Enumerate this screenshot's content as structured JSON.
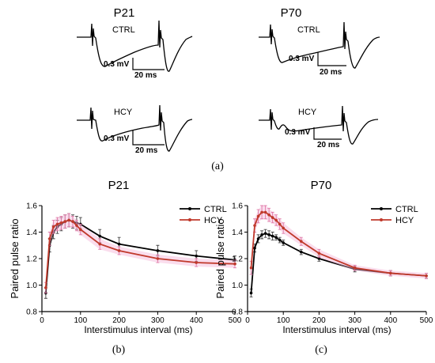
{
  "panel_labels": {
    "a": "(a)",
    "b": "(b)",
    "c": "(c)"
  },
  "traces": [
    {
      "group": "P21",
      "condition": "CTRL",
      "scale_mv": "0.3 mV",
      "scale_ms": "20 ms"
    },
    {
      "group": "P21",
      "condition": "HCY",
      "scale_mv": "0.3 mV",
      "scale_ms": "20 ms"
    },
    {
      "group": "P70",
      "condition": "CTRL",
      "scale_mv": "0.3 mV",
      "scale_ms": "20 ms"
    },
    {
      "group": "P70",
      "condition": "HCY",
      "scale_mv": "0.3 mV",
      "scale_ms": "20 ms"
    }
  ],
  "trace_headers": {
    "left": "P21",
    "right": "P70"
  },
  "colors": {
    "CTRL": "#000000",
    "HCY": "#c0392b",
    "HCY_band": "#f3b3d6"
  },
  "chart_data": [
    {
      "type": "line",
      "title": "P21",
      "xlabel": "Interstimulus interval (ms)",
      "ylabel": "Paired pulse ratio",
      "xlim": [
        0,
        500
      ],
      "ylim": [
        0.8,
        1.6
      ],
      "xticks": [
        0,
        100,
        200,
        300,
        400,
        500
      ],
      "yticks": [
        0.8,
        1.0,
        1.2,
        1.4,
        1.6
      ],
      "grid": false,
      "legend": "top-right",
      "x": [
        10,
        20,
        30,
        40,
        50,
        60,
        70,
        80,
        90,
        100,
        150,
        200,
        300,
        400,
        500
      ],
      "series": [
        {
          "name": "CTRL",
          "values": [
            0.94,
            1.3,
            1.4,
            1.44,
            1.46,
            1.48,
            1.49,
            1.48,
            1.47,
            1.46,
            1.37,
            1.31,
            1.26,
            1.22,
            1.19
          ],
          "errors": [
            0.04,
            0.05,
            0.05,
            0.05,
            0.05,
            0.05,
            0.05,
            0.05,
            0.05,
            0.05,
            0.05,
            0.05,
            0.04,
            0.04,
            0.03
          ]
        },
        {
          "name": "HCY",
          "values": [
            0.98,
            1.35,
            1.44,
            1.46,
            1.47,
            1.48,
            1.49,
            1.48,
            1.45,
            1.42,
            1.31,
            1.26,
            1.2,
            1.17,
            1.16
          ],
          "errors": [
            0.04,
            0.05,
            0.05,
            0.05,
            0.05,
            0.05,
            0.05,
            0.04,
            0.04,
            0.04,
            0.04,
            0.03,
            0.03,
            0.03,
            0.03
          ]
        }
      ]
    },
    {
      "type": "line",
      "title": "P70",
      "xlabel": "Interstimulus interval (ms)",
      "ylabel": "Paired pulse ratio",
      "xlim": [
        0,
        500
      ],
      "ylim": [
        0.8,
        1.6
      ],
      "xticks": [
        0,
        100,
        200,
        300,
        400,
        500
      ],
      "yticks": [
        0.8,
        1.0,
        1.2,
        1.4,
        1.6
      ],
      "grid": false,
      "legend": "top-right",
      "x": [
        10,
        20,
        30,
        40,
        50,
        60,
        70,
        80,
        90,
        100,
        150,
        200,
        300,
        400,
        500
      ],
      "series": [
        {
          "name": "CTRL",
          "values": [
            0.94,
            1.28,
            1.35,
            1.38,
            1.39,
            1.38,
            1.37,
            1.36,
            1.34,
            1.32,
            1.25,
            1.2,
            1.12,
            1.09,
            1.07
          ],
          "errors": [
            0.03,
            0.03,
            0.03,
            0.03,
            0.03,
            0.03,
            0.03,
            0.02,
            0.02,
            0.02,
            0.02,
            0.02,
            0.02,
            0.02,
            0.02
          ]
        },
        {
          "name": "HCY",
          "values": [
            1.13,
            1.45,
            1.52,
            1.55,
            1.55,
            1.53,
            1.51,
            1.49,
            1.46,
            1.43,
            1.33,
            1.24,
            1.13,
            1.09,
            1.07
          ],
          "errors": [
            0.05,
            0.05,
            0.05,
            0.05,
            0.05,
            0.05,
            0.04,
            0.04,
            0.04,
            0.04,
            0.03,
            0.03,
            0.02,
            0.02,
            0.02
          ]
        }
      ]
    }
  ]
}
